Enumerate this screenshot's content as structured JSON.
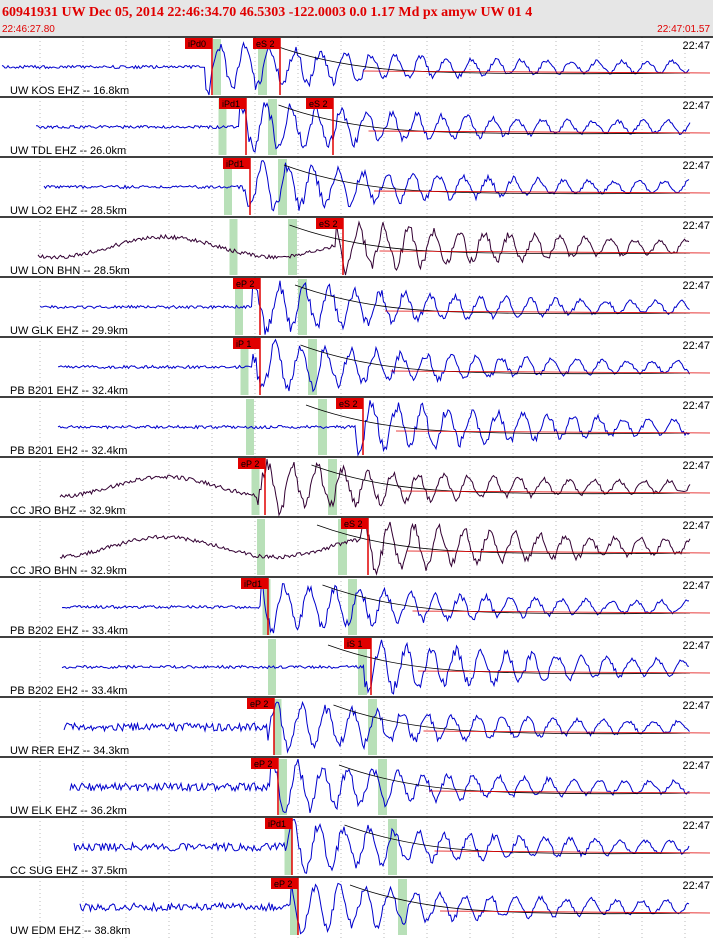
{
  "header": {
    "title": "60941931 UW Dec 05, 2014 22:46:34.70   46.5303 -122.0003  0.0 1.17 Md px amyw UW 01   4",
    "start_time": "22:46:27.80",
    "end_time": "22:47:01.57"
  },
  "traces": [
    {
      "label": "UW KOS EHZ -- 16.8km",
      "time": "22:47",
      "picks": [
        "iPd0",
        "eS 2"
      ]
    },
    {
      "label": "UW TDL EHZ -- 26.0km",
      "time": "22:47",
      "picks": [
        "iPd1",
        "eS 2"
      ]
    },
    {
      "label": "UW LO2 EHZ -- 28.5km",
      "time": "22:47",
      "picks": [
        "iPd1"
      ]
    },
    {
      "label": "UW LON BHN -- 28.5km",
      "time": "22:47",
      "picks": [
        "eS 2"
      ]
    },
    {
      "label": "UW GLK EHZ -- 29.9km",
      "time": "22:47",
      "picks": [
        "eP 2"
      ]
    },
    {
      "label": "PB B201 EHZ -- 32.4km",
      "time": "22:47",
      "picks": [
        "iP 1"
      ]
    },
    {
      "label": "PB B201 EH2 -- 32.4km",
      "time": "22:47",
      "picks": [
        "eS 2"
      ]
    },
    {
      "label": "CC JRO BHZ -- 32.9km",
      "time": "22:47",
      "picks": [
        "eP 2"
      ]
    },
    {
      "label": "CC JRO BHN -- 32.9km",
      "time": "22:47",
      "picks": [
        "eS 2"
      ]
    },
    {
      "label": "PB B202 EHZ -- 33.4km",
      "time": "22:47",
      "picks": [
        "iPd1"
      ]
    },
    {
      "label": "PB B202 EH2 -- 33.4km",
      "time": "22:47",
      "picks": [
        "iS 1"
      ]
    },
    {
      "label": "UW RER EHZ -- 34.3km",
      "time": "22:47",
      "picks": [
        "eP 2"
      ]
    },
    {
      "label": "UW ELK EHZ -- 36.2km",
      "time": "22:47",
      "picks": [
        "eP 2"
      ]
    },
    {
      "label": "CC SUG EHZ -- 37.5km",
      "time": "22:47",
      "picks": [
        "iPd1"
      ]
    },
    {
      "label": "UW EDM EHZ -- 38.8km",
      "time": "22:47",
      "picks": [
        "eP 2"
      ]
    }
  ]
}
